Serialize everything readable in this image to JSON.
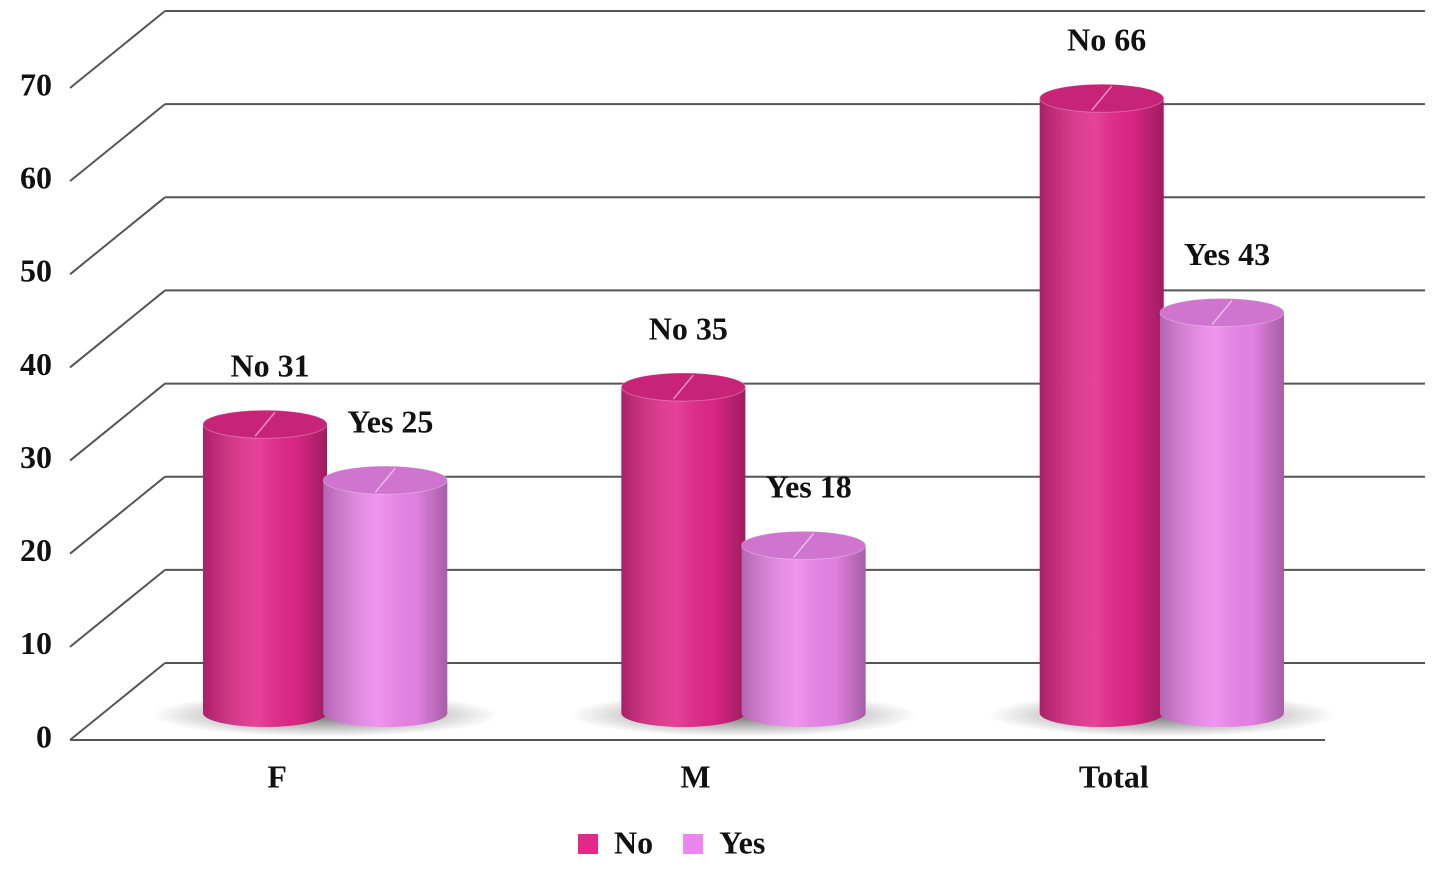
{
  "chart_data": {
    "type": "bar",
    "categories": [
      "F",
      "M",
      "Total"
    ],
    "series": [
      {
        "name": "No",
        "color": "#e3288a",
        "values": [
          31,
          35,
          66
        ],
        "value_labels": [
          "No 31",
          "No 35",
          "No 66"
        ]
      },
      {
        "name": "Yes",
        "color": "#ec86ec",
        "values": [
          25,
          18,
          43
        ],
        "value_labels": [
          "Yes 25",
          "Yes 18",
          "Yes 43"
        ]
      }
    ],
    "ylim": [
      0,
      70
    ],
    "yticks": [
      0,
      10,
      20,
      30,
      40,
      50,
      60,
      70
    ],
    "grid": true,
    "legend": "bottom"
  }
}
